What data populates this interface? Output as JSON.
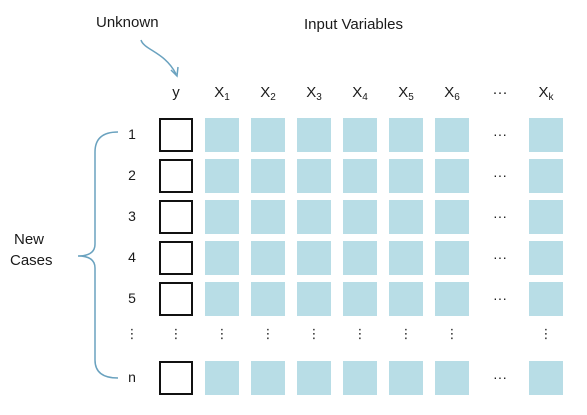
{
  "unknown_label": "Unknown",
  "input_variables_label": "Input Variables",
  "new_cases_label": [
    "New",
    "Cases"
  ],
  "y_header": "y",
  "x_headers": [
    {
      "base": "X",
      "sub": "1"
    },
    {
      "base": "X",
      "sub": "2"
    },
    {
      "base": "X",
      "sub": "3"
    },
    {
      "base": "X",
      "sub": "4"
    },
    {
      "base": "X",
      "sub": "5"
    },
    {
      "base": "X",
      "sub": "6"
    },
    {
      "base": "X",
      "sub": "k"
    }
  ],
  "row_labels": [
    "1",
    "2",
    "3",
    "4",
    "5",
    "n"
  ],
  "ellipsis_horizontal": "···",
  "ellipsis_vertical": "⋮",
  "colors": {
    "cell_fill": "#b8dde6",
    "border": "#111111",
    "bracket": "#6aa2bf"
  }
}
